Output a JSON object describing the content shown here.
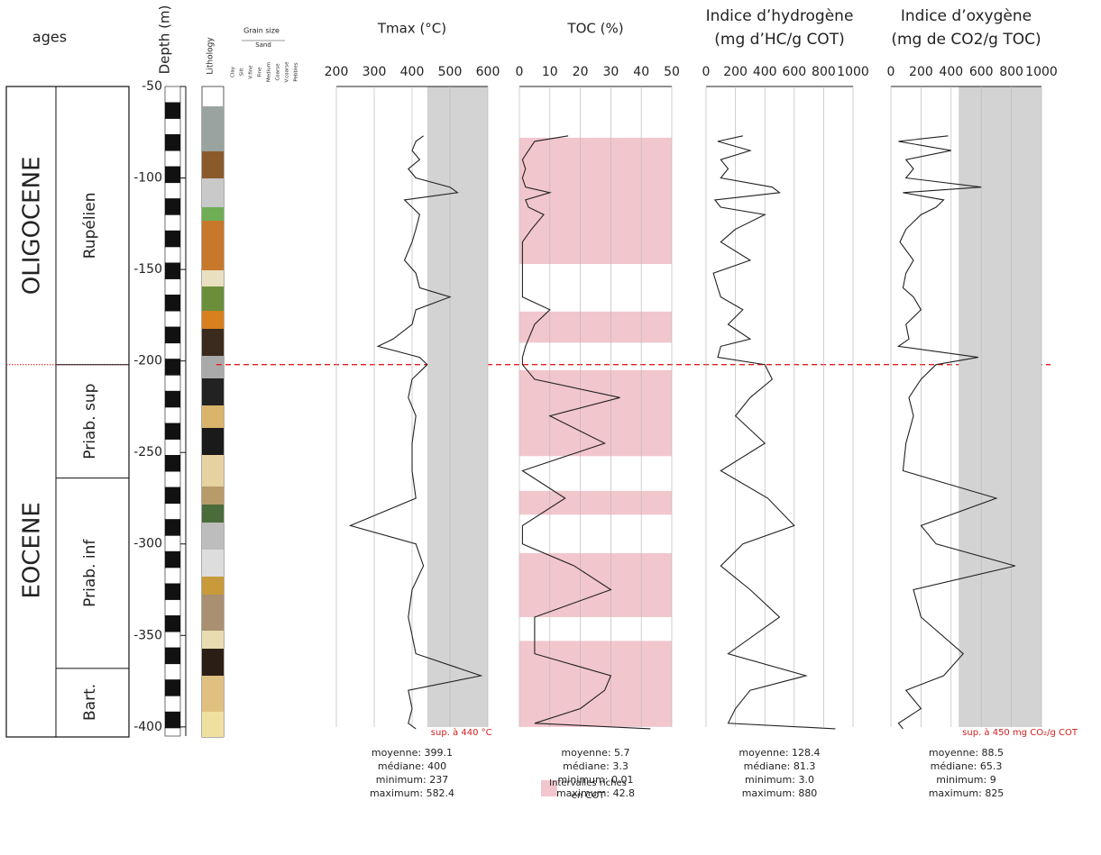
{
  "header": {
    "ages": "ages",
    "lithology": "Lithology",
    "grain_size": "Grain size",
    "sand": "Sand",
    "grain_classes": [
      "Clay",
      "Silt",
      "V.fine",
      "Fine",
      "Medium",
      "Coarse",
      "V.coarse",
      "Pebbles"
    ]
  },
  "depth_axis": {
    "label": "Depth (m)",
    "ylim": [
      -405,
      -50
    ],
    "yticks": [
      -50,
      -100,
      -150,
      -200,
      -250,
      -300,
      -350,
      -400
    ]
  },
  "ages": {
    "epochs": [
      "OLIGOCENE",
      "EOCENE"
    ],
    "boundary": -202,
    "stages": [
      {
        "name": "Rupélien",
        "base": -202
      },
      {
        "name": "Priab. sup",
        "base": -264
      },
      {
        "name": "Priab. inf",
        "base": -368
      },
      {
        "name": "Bart.",
        "base": -405
      }
    ]
  },
  "chart_data": [
    {
      "type": "line",
      "title": [
        "Tmax (°C)"
      ],
      "xlim": [
        200,
        600
      ],
      "xticks": [
        200,
        300,
        400,
        500,
        600
      ],
      "color": "#222222",
      "depth": [
        -77,
        -80,
        -85,
        -90,
        -95,
        -100,
        -105,
        -108,
        -112,
        -116,
        -120,
        -128,
        -135,
        -145,
        -152,
        -160,
        -165,
        -172,
        -180,
        -188,
        -192,
        -198,
        -202,
        -210,
        -220,
        -230,
        -245,
        -260,
        -275,
        -290,
        -300,
        -312,
        -325,
        -340,
        -360,
        -372,
        -380,
        -390,
        -398,
        -401
      ],
      "values": [
        430,
        410,
        400,
        420,
        390,
        410,
        500,
        520,
        380,
        400,
        420,
        410,
        400,
        380,
        410,
        420,
        500,
        410,
        400,
        350,
        310,
        420,
        440,
        400,
        390,
        410,
        400,
        400,
        410,
        237,
        410,
        430,
        400,
        390,
        410,
        582,
        390,
        400,
        390,
        410
      ],
      "shade": {
        "from": 440,
        "color": "#d3d3d3",
        "label": "sup. à 440 °C"
      },
      "stats": [
        "moyenne: 399.1",
        "médiane: 400",
        "minimum: 237",
        "maximum: 582.4"
      ]
    },
    {
      "type": "line",
      "title": [
        "TOC (%)"
      ],
      "xlim": [
        0,
        50
      ],
      "xticks": [
        0,
        10,
        20,
        30,
        40,
        50
      ],
      "color": "#222222",
      "depth": [
        -77,
        -80,
        -85,
        -90,
        -95,
        -100,
        -105,
        -108,
        -112,
        -116,
        -120,
        -128,
        -135,
        -145,
        -152,
        -160,
        -165,
        -172,
        -180,
        -188,
        -192,
        -198,
        -202,
        -210,
        -220,
        -230,
        -245,
        -260,
        -275,
        -290,
        -300,
        -312,
        -325,
        -340,
        -360,
        -372,
        -380,
        -390,
        -398,
        -401
      ],
      "values": [
        16,
        5,
        3,
        1,
        2,
        1,
        2,
        10,
        2,
        3,
        8,
        4,
        1,
        1,
        1,
        1,
        1,
        10,
        5,
        3,
        2,
        1,
        1,
        5,
        33,
        10,
        28,
        1,
        15,
        1,
        1,
        18,
        30,
        5,
        5,
        30,
        28,
        20,
        5,
        43
      ],
      "intervals": [
        [
          -78,
          -147
        ],
        [
          -173,
          -190
        ],
        [
          -205,
          -252
        ],
        [
          -271,
          -284
        ],
        [
          -305,
          -340
        ],
        [
          -353,
          -400
        ]
      ],
      "interval_color": "#f2c6cd",
      "legend": [
        "Intervalles riches",
        "en COT"
      ],
      "stats": [
        "moyenne: 5.7",
        "médiane: 3.3",
        "minimum: 0.01",
        "maximum: 42.8"
      ]
    },
    {
      "type": "line",
      "title": [
        "Indice d’hydrogène",
        "(mg d’HC/g COT)"
      ],
      "xlim": [
        0,
        1000
      ],
      "xticks": [
        0,
        200,
        400,
        600,
        800,
        1000
      ],
      "color": "#222222",
      "depth": [
        -77,
        -80,
        -85,
        -90,
        -95,
        -100,
        -105,
        -108,
        -112,
        -116,
        -120,
        -128,
        -135,
        -145,
        -152,
        -160,
        -165,
        -172,
        -180,
        -188,
        -192,
        -198,
        -202,
        -210,
        -220,
        -230,
        -245,
        -260,
        -275,
        -290,
        -300,
        -312,
        -325,
        -340,
        -360,
        -372,
        -380,
        -390,
        -398,
        -401
      ],
      "values": [
        250,
        80,
        300,
        100,
        150,
        100,
        450,
        500,
        60,
        100,
        400,
        200,
        100,
        300,
        50,
        80,
        100,
        250,
        150,
        300,
        100,
        80,
        400,
        450,
        300,
        200,
        400,
        100,
        420,
        600,
        250,
        100,
        300,
        500,
        150,
        680,
        300,
        200,
        150,
        880
      ],
      "stats": [
        "moyenne: 128.4",
        "médiane: 81.3",
        "minimum: 3.0",
        "maximum: 880"
      ]
    },
    {
      "type": "line",
      "title": [
        "Indice d’oxygène",
        "(mg de CO2/g TOC)"
      ],
      "xlim": [
        0,
        1000
      ],
      "xticks": [
        0,
        200,
        400,
        600,
        800,
        1000
      ],
      "color": "#222222",
      "depth": [
        -77,
        -80,
        -85,
        -90,
        -95,
        -100,
        -105,
        -108,
        -112,
        -116,
        -120,
        -128,
        -135,
        -145,
        -152,
        -160,
        -165,
        -172,
        -180,
        -188,
        -192,
        -198,
        -202,
        -210,
        -220,
        -230,
        -245,
        -260,
        -275,
        -290,
        -300,
        -312,
        -325,
        -340,
        -360,
        -372,
        -380,
        -390,
        -398,
        -401
      ],
      "values": [
        380,
        50,
        400,
        100,
        150,
        100,
        600,
        80,
        350,
        300,
        200,
        100,
        60,
        150,
        100,
        80,
        150,
        200,
        100,
        120,
        50,
        580,
        300,
        200,
        120,
        150,
        100,
        80,
        700,
        200,
        300,
        825,
        150,
        200,
        480,
        350,
        100,
        200,
        50,
        80
      ],
      "shade": {
        "from": 450,
        "color": "#d3d3d3",
        "label": "sup. à 450 mg CO₂/g COT"
      },
      "stats": [
        "moyenne: 88.5",
        "médiane: 65.3",
        "minimum: 9",
        "maximum: 825"
      ]
    }
  ]
}
